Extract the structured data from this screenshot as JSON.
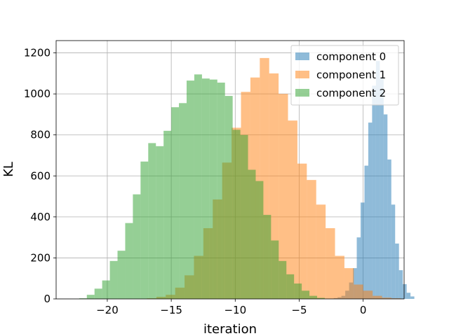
{
  "chart_data": {
    "type": "histogram",
    "xlabel": "iteration",
    "ylabel": "KL",
    "xlim": [
      -24,
      3.2
    ],
    "ylim": [
      0,
      1260
    ],
    "xticks": [
      -20,
      -15,
      -10,
      -5,
      0
    ],
    "yticks": [
      0,
      200,
      400,
      600,
      800,
      1000,
      1200
    ],
    "grid": true,
    "legend_position": "top-right",
    "series": [
      {
        "name": "component 0",
        "color": "#1f77b4",
        "opacity": 0.5,
        "bin_start": -2.3,
        "bin_width": 0.3,
        "counts": [
          4,
          8,
          15,
          40,
          80,
          150,
          300,
          470,
          650,
          860,
          1040,
          1160,
          1080,
          900,
          680,
          460,
          270,
          140,
          72,
          30,
          12
        ]
      },
      {
        "name": "component 1",
        "color": "#ff7f0e",
        "opacity": 0.5,
        "bin_start": -16.9,
        "bin_width": 0.735,
        "counts": [
          3,
          10,
          20,
          55,
          115,
          210,
          345,
          485,
          665,
          835,
          1010,
          1080,
          1175,
          1100,
          1000,
          870,
          660,
          580,
          460,
          345,
          210,
          150,
          70,
          40,
          15,
          6,
          3
        ]
      },
      {
        "name": "component 2",
        "color": "#2ca02c",
        "opacity": 0.5,
        "bin_start": -22.2,
        "bin_width": 0.6,
        "counts": [
          3,
          20,
          50,
          90,
          185,
          235,
          370,
          510,
          670,
          760,
          745,
          820,
          935,
          955,
          1065,
          1095,
          1075,
          1070,
          1055,
          990,
          825,
          800,
          630,
          575,
          410,
          285,
          185,
          120,
          75,
          40,
          15,
          5
        ]
      }
    ]
  }
}
